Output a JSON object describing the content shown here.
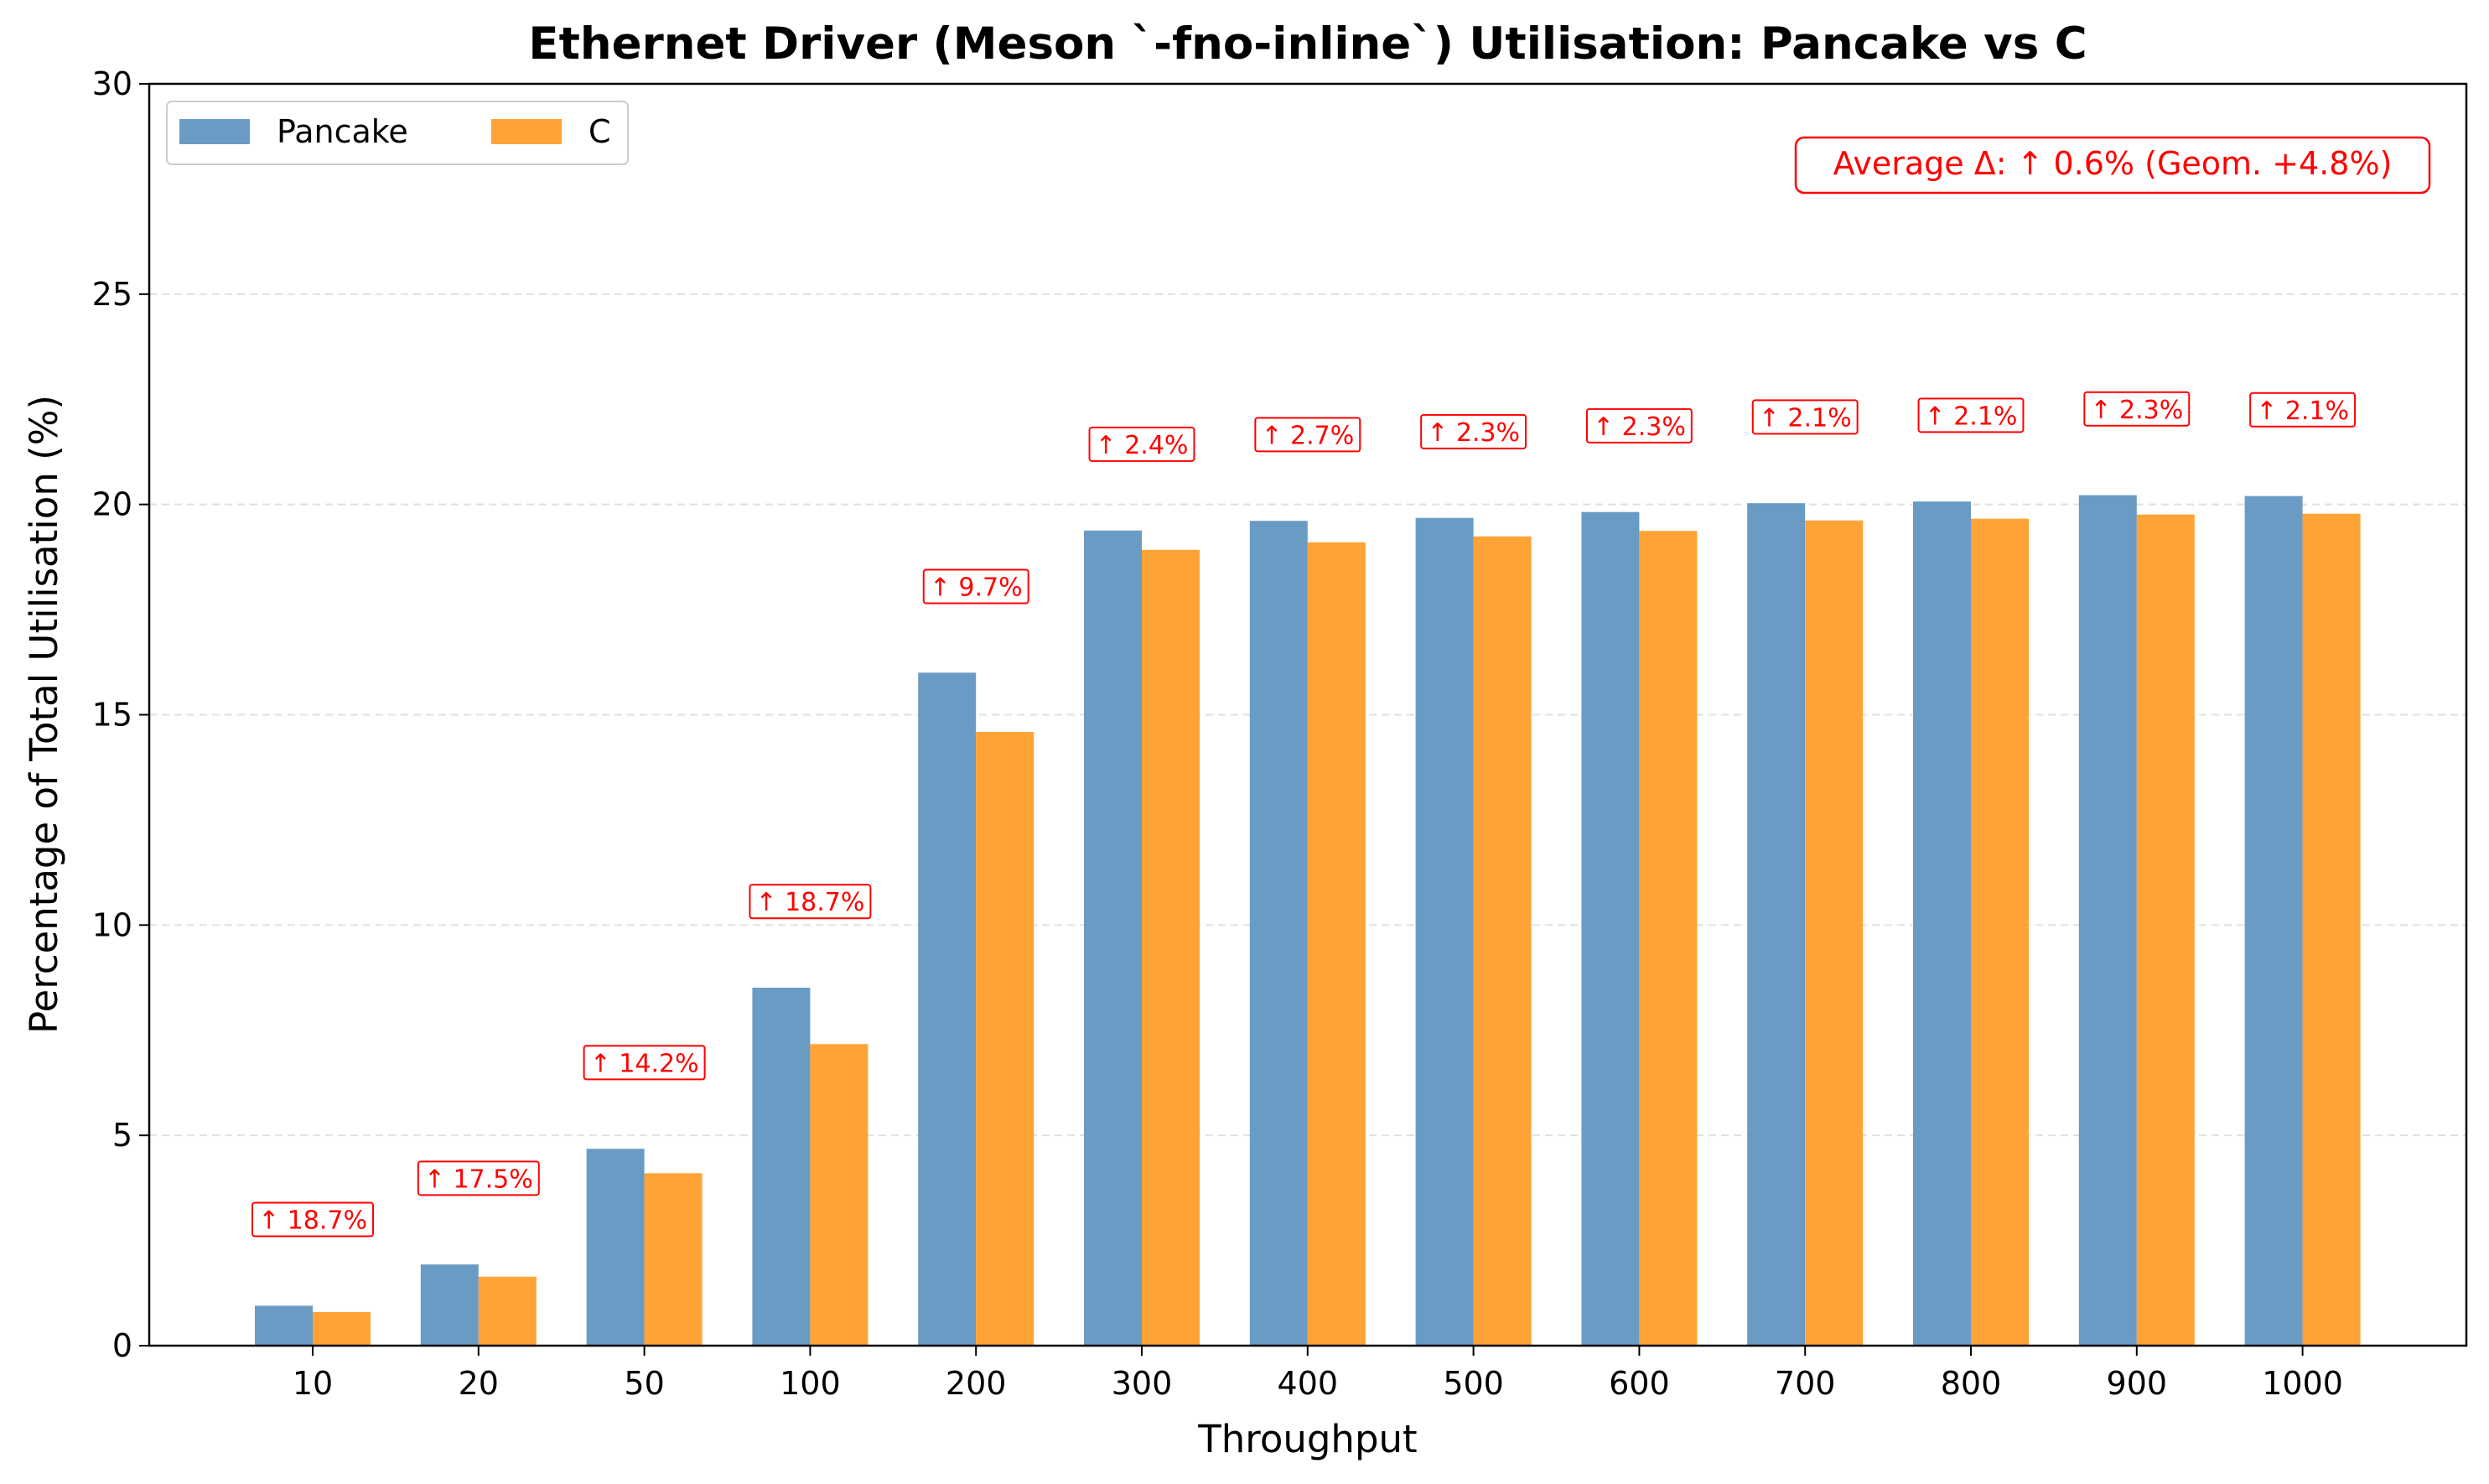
{
  "chart_data": {
    "type": "bar",
    "title": "Ethernet Driver (Meson `-fno-inline`) Utilisation: Pancake vs C",
    "xlabel": "Throughput",
    "ylabel": "Percentage of Total Utilisation (%)",
    "ylim": [
      0,
      30
    ],
    "yticks": [
      "0",
      "5",
      "10",
      "15",
      "20",
      "25",
      "30"
    ],
    "grid": "y-dashed",
    "legend_position": "top-left",
    "categories": [
      "10",
      "20",
      "50",
      "100",
      "200",
      "300",
      "400",
      "500",
      "600",
      "700",
      "800",
      "900",
      "1000"
    ],
    "series": [
      {
        "name": "Pancake",
        "color": "#6a9bc4",
        "values": [
          0.95,
          1.93,
          4.68,
          8.51,
          16.0,
          19.38,
          19.61,
          19.68,
          19.82,
          20.03,
          20.07,
          20.22,
          20.2
        ]
      },
      {
        "name": "C",
        "color": "#ffa336",
        "values": [
          0.8,
          1.64,
          4.1,
          7.17,
          14.59,
          18.92,
          19.1,
          19.24,
          19.37,
          19.62,
          19.66,
          19.76,
          19.78
        ]
      }
    ],
    "delta_labels": [
      "↑ 18.7%",
      "↑ 17.5%",
      "↑ 14.2%",
      "↑ 18.7%",
      "↑ 9.7%",
      "↑ 2.4%",
      "↑ 2.7%",
      "↑ 2.3%",
      "↑ 2.3%",
      "↑ 2.1%",
      "↑ 2.1%",
      "↑ 2.3%",
      "↑ 2.1%"
    ],
    "annotation": "Average Δ: ↑ 0.6% (Geom. +4.8%)",
    "annotation_color": "#ff0000"
  }
}
